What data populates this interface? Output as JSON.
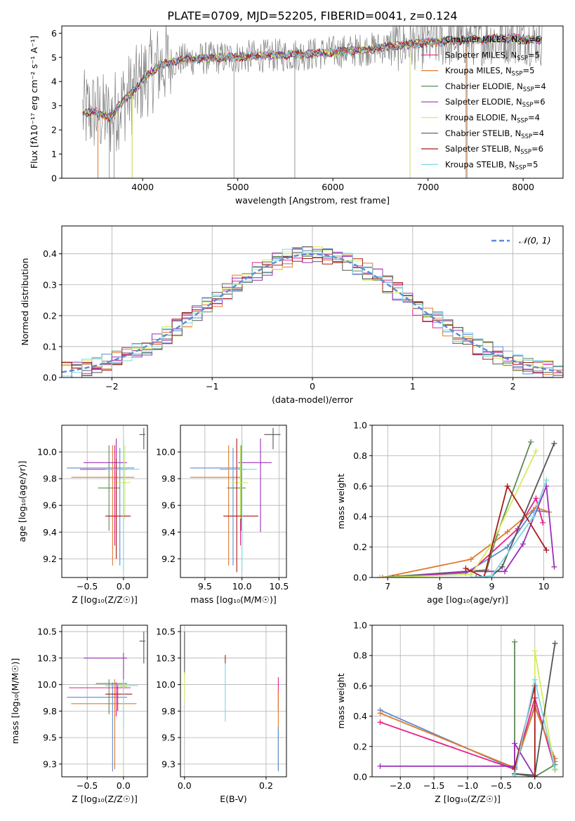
{
  "title": "PLATE=0709, MJD=52205, FIBERID=0041, z=0.124",
  "colors": {
    "cm": "#5b8bd6",
    "sm": "#e91e8a",
    "km": "#e07a2b",
    "ce": "#5f8a58",
    "se": "#9b30b8",
    "ke": "#d6ec5c",
    "cs": "#555555",
    "ss": "#a71a1a",
    "ks": "#7fd6e0",
    "obs": "#808080",
    "gauss": "#5b8bd6",
    "grid": "#b0b0b0"
  },
  "legend1": [
    {
      "name": "Chabrier MILES, N",
      "sub": "SSP",
      "tail": "=6",
      "c": "cm"
    },
    {
      "name": "Salpeter MILES, N",
      "sub": "SSP",
      "tail": "=5",
      "c": "sm"
    },
    {
      "name": "Kroupa MILES, N",
      "sub": "SSP",
      "tail": "=5",
      "c": "km"
    },
    {
      "name": "Chabrier ELODIE, N",
      "sub": "SSP",
      "tail": "=4",
      "c": "ce"
    },
    {
      "name": "Salpeter ELODIE, N",
      "sub": "SSP",
      "tail": "=6",
      "c": "se"
    },
    {
      "name": "Kroupa ELODIE, N",
      "sub": "SSP",
      "tail": "=4",
      "c": "ke"
    },
    {
      "name": "Chabrier STELIB, N",
      "sub": "SSP",
      "tail": "=4",
      "c": "cs"
    },
    {
      "name": "Salpeter STELIB, N",
      "sub": "SSP",
      "tail": "=6",
      "c": "ss"
    },
    {
      "name": "Kroupa STELIB, N",
      "sub": "SSP",
      "tail": "=5",
      "c": "ks"
    }
  ],
  "legend2": {
    "label": "𝒩(0, 1)"
  },
  "chart_data": [
    {
      "id": "spectrum",
      "type": "line",
      "xlabel": "wavelength [Angstrom, rest frame]",
      "ylabel": "Flux [fλ10⁻¹⁷ erg cm⁻² s⁻¹ A⁻¹]",
      "xlim": [
        3150,
        8420
      ],
      "ylim": [
        0,
        6.3
      ],
      "xticks": [
        4000,
        5000,
        6000,
        7000,
        8000
      ],
      "yticks": [
        0,
        1,
        2,
        3,
        4,
        5,
        6
      ],
      "continuum_x": [
        3350,
        3500,
        3650,
        3800,
        3950,
        4050,
        4200,
        4400,
        4600,
        4900,
        5200,
        5500,
        5800,
        6100,
        6400,
        6700,
        7000,
        7300,
        7600,
        7900,
        8200
      ],
      "continuum_y": [
        2.7,
        2.75,
        2.5,
        3.2,
        3.8,
        4.3,
        4.7,
        4.9,
        4.95,
        5.0,
        5.05,
        5.1,
        5.15,
        5.25,
        5.35,
        5.5,
        5.6,
        5.7,
        5.75,
        5.8,
        5.7
      ],
      "absorption_lines_x": [
        3530,
        3650,
        3700,
        3890,
        4960,
        5600,
        6810,
        7400
      ]
    },
    {
      "id": "residuals",
      "type": "histogram",
      "xlabel": "(data-model)/error",
      "ylabel": "Normed distribution",
      "xlim": [
        -2.5,
        2.5
      ],
      "ylim": [
        0,
        0.49
      ],
      "xticks": [
        -2,
        -1,
        0,
        1,
        2
      ],
      "yticks": [
        0.0,
        0.1,
        0.2,
        0.3,
        0.4
      ],
      "bin_width": 0.1,
      "reference": "normal(0,1)"
    },
    {
      "id": "age-vs-Z",
      "type": "scatter",
      "xlabel": "Z [log₁₀(Z/Z☉)]",
      "ylabel": "age  [log₁₀(age/yr)]",
      "xlim": [
        -0.85,
        0.33
      ],
      "ylim": [
        9.06,
        10.2
      ],
      "xticks": [
        -0.5,
        0.0
      ],
      "yticks": [
        9.2,
        9.4,
        9.6,
        9.8,
        10.0
      ],
      "points": [
        {
          "c": "cm",
          "x": -0.05,
          "xe": [
            -0.78,
            0.15
          ],
          "y": 9.88,
          "ye": [
            9.15,
            10.03
          ]
        },
        {
          "c": "sm",
          "x": -0.12,
          "xe": [
            -0.6,
            0.05
          ],
          "y": 9.87,
          "ye": [
            9.3,
            10.05
          ]
        },
        {
          "c": "km",
          "x": -0.15,
          "xe": [
            -0.72,
            0.15
          ],
          "y": 9.81,
          "ye": [
            9.15,
            10.05
          ]
        },
        {
          "c": "ce",
          "x": -0.2,
          "xe": [
            -0.35,
            -0.05
          ],
          "y": 9.73,
          "ye": [
            9.41,
            10.05
          ]
        },
        {
          "c": "se",
          "x": -0.1,
          "xe": [
            -0.55,
            0.05
          ],
          "y": 9.92,
          "ye": [
            9.4,
            10.1
          ]
        },
        {
          "c": "ke",
          "x": 0.02,
          "xe": [
            -0.1,
            0.1
          ],
          "y": 9.77,
          "ye": [
            9.5,
            10.05
          ]
        },
        {
          "c": "cs",
          "x": 0.28,
          "xe": [
            0.22,
            0.3
          ],
          "y": 10.13,
          "ye": [
            10.02,
            10.18
          ]
        },
        {
          "c": "ss",
          "x": -0.1,
          "xe": [
            -0.25,
            0.1
          ],
          "y": 9.52,
          "ye": [
            9.2,
            9.95
          ]
        },
        {
          "c": "ks",
          "x": 0.0,
          "xe": [
            -0.25,
            0.22
          ],
          "y": 9.87,
          "ye": [
            9.1,
            10.1
          ]
        }
      ]
    },
    {
      "id": "age-vs-mass",
      "type": "scatter",
      "xlabel": "mass [log₁₀(M/M☉)]",
      "ylabel": "",
      "xlim": [
        9.17,
        10.6
      ],
      "ylim": [
        9.06,
        10.2
      ],
      "xticks": [
        9.5,
        10.0,
        10.5
      ],
      "yticks": [
        9.2,
        9.4,
        9.6,
        9.8,
        10.0
      ],
      "points": [
        {
          "c": "cm",
          "x": 9.88,
          "xe": [
            9.3,
            9.98
          ],
          "y": 9.88,
          "ye": [
            9.15,
            10.03
          ]
        },
        {
          "c": "sm",
          "x": 9.98,
          "xe": [
            9.7,
            10.05
          ],
          "y": 9.87,
          "ye": [
            9.3,
            10.05
          ]
        },
        {
          "c": "km",
          "x": 9.82,
          "xe": [
            9.3,
            10.0
          ],
          "y": 9.81,
          "ye": [
            9.15,
            10.05
          ]
        },
        {
          "c": "ce",
          "x": 9.99,
          "xe": [
            9.8,
            10.05
          ],
          "y": 9.73,
          "ye": [
            9.41,
            10.05
          ]
        },
        {
          "c": "se",
          "x": 10.25,
          "xe": [
            9.95,
            10.4
          ],
          "y": 9.92,
          "ye": [
            9.4,
            10.1
          ]
        },
        {
          "c": "ke",
          "x": 9.98,
          "xe": [
            9.85,
            10.08
          ],
          "y": 9.77,
          "ye": [
            9.5,
            10.05
          ]
        },
        {
          "c": "cs",
          "x": 10.42,
          "xe": [
            10.3,
            10.52
          ],
          "y": 10.13,
          "ye": [
            10.02,
            10.18
          ]
        },
        {
          "c": "ss",
          "x": 9.93,
          "xe": [
            9.75,
            10.22
          ],
          "y": 9.52,
          "ye": [
            9.1,
            10.1
          ]
        },
        {
          "c": "ks",
          "x": 10.0,
          "xe": [
            9.7,
            10.2
          ],
          "y": 9.87,
          "ye": [
            9.1,
            10.1
          ]
        }
      ]
    },
    {
      "id": "weight-vs-age",
      "type": "line",
      "xlabel": "age  [log₁₀(age/yr)]",
      "ylabel": "mass weight",
      "xlim": [
        6.7,
        10.37
      ],
      "ylim": [
        0,
        1.0
      ],
      "xticks": [
        7,
        8,
        9,
        10
      ],
      "yticks": [
        0.0,
        0.2,
        0.4,
        0.6,
        0.8,
        1.0
      ],
      "series": [
        {
          "c": "cm",
          "x": [
            6.85,
            8.5,
            9.3,
            9.8,
            10.1
          ],
          "y": [
            0.0,
            0.03,
            0.2,
            0.44,
            0.43
          ]
        },
        {
          "c": "sm",
          "x": [
            7.2,
            8.6,
            9.5,
            9.85,
            9.98
          ],
          "y": [
            0.0,
            0.04,
            0.32,
            0.52,
            0.36
          ]
        },
        {
          "c": "km",
          "x": [
            6.9,
            8.6,
            9.3,
            9.85,
            10.1
          ],
          "y": [
            0.0,
            0.12,
            0.3,
            0.46,
            0.43
          ]
        },
        {
          "c": "ce",
          "x": [
            6.85,
            8.9,
            9.1,
            9.75
          ],
          "y": [
            0.0,
            0.05,
            0.28,
            0.89
          ]
        },
        {
          "c": "se",
          "x": [
            7.1,
            8.5,
            9.25,
            9.6,
            10.05,
            10.2
          ],
          "y": [
            0.0,
            0.04,
            0.04,
            0.22,
            0.6,
            0.07
          ]
        },
        {
          "c": "ke",
          "x": [
            6.85,
            8.6,
            9.0,
            9.85
          ],
          "y": [
            0.0,
            0.02,
            0.22,
            0.83
          ]
        },
        {
          "c": "cs",
          "x": [
            8.7,
            9.0,
            9.2,
            10.2
          ],
          "y": [
            0.0,
            0.01,
            0.07,
            0.88
          ]
        },
        {
          "c": "ss",
          "x": [
            8.5,
            8.85,
            9.3,
            10.05
          ],
          "y": [
            0.06,
            0.0,
            0.6,
            0.18
          ]
        },
        {
          "c": "ks",
          "x": [
            8.6,
            9.0,
            9.8,
            10.05
          ],
          "y": [
            0.0,
            0.01,
            0.4,
            0.64
          ]
        }
      ]
    },
    {
      "id": "mass-vs-Z",
      "type": "scatter",
      "xlabel": "Z [log₁₀(Z/Z☉)]",
      "ylabel": "mass [log₁₀(M/M☉)]",
      "xlim": [
        -0.85,
        0.33
      ],
      "ylim": [
        9.13,
        10.56
      ],
      "xticks": [
        -0.5,
        0.0
      ],
      "yticks": [
        9.25,
        9.5,
        9.75,
        10.0,
        10.25,
        10.5
      ],
      "points": [
        {
          "c": "cm",
          "x": -0.15,
          "xe": [
            -0.78,
            0.05
          ],
          "y": 9.88,
          "ye": [
            9.18,
            10.02
          ]
        },
        {
          "c": "sm",
          "x": -0.1,
          "xe": [
            -0.75,
            0.1
          ],
          "y": 9.97,
          "ye": [
            9.7,
            10.02
          ]
        },
        {
          "c": "km",
          "x": -0.12,
          "xe": [
            -0.72,
            0.18
          ],
          "y": 9.82,
          "ye": [
            9.2,
            10.05
          ]
        },
        {
          "c": "ce",
          "x": -0.2,
          "xe": [
            -0.38,
            0.05
          ],
          "y": 10.01,
          "ye": [
            9.72,
            10.05
          ]
        },
        {
          "c": "se",
          "x": 0.0,
          "xe": [
            -0.55,
            0.05
          ],
          "y": 10.25,
          "ye": [
            10.0,
            10.3
          ]
        },
        {
          "c": "ke",
          "x": 0.0,
          "xe": [
            -0.05,
            0.05
          ],
          "y": 9.98,
          "ye": [
            9.75,
            10.02
          ]
        },
        {
          "c": "cs",
          "x": 0.28,
          "xe": [
            0.22,
            0.3
          ],
          "y": 10.41,
          "ye": [
            10.2,
            10.5
          ]
        },
        {
          "c": "ss",
          "x": -0.08,
          "xe": [
            -0.25,
            0.12
          ],
          "y": 9.91,
          "ye": [
            9.75,
            10.0
          ]
        },
        {
          "c": "ks",
          "x": 0.0,
          "xe": [
            -0.25,
            0.2
          ],
          "y": 9.99,
          "ye": [
            9.6,
            10.05
          ]
        }
      ]
    },
    {
      "id": "mass-vs-EBV",
      "type": "scatter",
      "xlabel": "E(B-V)",
      "ylabel": "",
      "xlim": [
        -0.01,
        0.25
      ],
      "ylim": [
        9.13,
        10.56
      ],
      "xticks": [
        0.0,
        0.2
      ],
      "yticks": [
        9.25,
        9.5,
        9.75,
        10.0,
        10.25,
        10.5
      ],
      "points": [
        {
          "c": "cs",
          "x": 0.0,
          "y": 10.3,
          "ye": [
            10.1,
            10.5
          ]
        },
        {
          "c": "ke",
          "x": 0.0,
          "y": 9.98,
          "ye": [
            9.85,
            10.12
          ]
        },
        {
          "c": "ss",
          "x": 0.1,
          "y": 10.25,
          "ye": [
            10.2,
            10.28
          ]
        },
        {
          "c": "ks",
          "x": 0.1,
          "y": 9.95,
          "ye": [
            9.65,
            10.2
          ]
        },
        {
          "c": "sm",
          "x": 0.23,
          "y": 9.95,
          "ye": [
            9.75,
            10.07
          ]
        },
        {
          "c": "km",
          "x": 0.23,
          "y": 9.6,
          "ye": [
            9.2,
            9.93
          ]
        },
        {
          "c": "cm",
          "x": 0.23,
          "y": 9.4,
          "ye": [
            9.18,
            9.6
          ]
        }
      ]
    },
    {
      "id": "weight-vs-Z",
      "type": "line",
      "xlabel": "Z [log₁₀(Z/Z☉)]",
      "ylabel": "mass weight",
      "xlim": [
        -2.42,
        0.42
      ],
      "ylim": [
        0,
        1.0
      ],
      "xticks": [
        -2.0,
        -1.5,
        -1.0,
        -0.5,
        0.0
      ],
      "yticks": [
        0.0,
        0.2,
        0.4,
        0.6,
        0.8,
        1.0
      ],
      "series": [
        {
          "c": "cm",
          "x": [
            -2.3,
            -0.3,
            0.0,
            0.3
          ],
          "y": [
            0.44,
            0.05,
            0.47,
            0.1
          ]
        },
        {
          "c": "sm",
          "x": [
            -2.3,
            -0.3,
            0.0,
            0.3
          ],
          "y": [
            0.36,
            0.05,
            0.52,
            0.05
          ]
        },
        {
          "c": "km",
          "x": [
            -2.3,
            -0.3,
            0.0,
            0.3
          ],
          "y": [
            0.42,
            0.06,
            0.46,
            0.12
          ]
        },
        {
          "c": "ce",
          "x": [
            -0.3,
            -0.3,
            0.0,
            0.3
          ],
          "y": [
            0.89,
            0.02,
            0.0,
            0.08
          ]
        },
        {
          "c": "se",
          "x": [
            -2.3,
            -0.3,
            -0.3,
            0.0
          ],
          "y": [
            0.07,
            0.07,
            0.22,
            0.0
          ]
        },
        {
          "c": "ke",
          "x": [
            0.0,
            0.0,
            0.3
          ],
          "y": [
            0.01,
            0.83,
            0.04
          ]
        },
        {
          "c": "cs",
          "x": [
            -0.3,
            0.0,
            0.3
          ],
          "y": [
            0.02,
            0.01,
            0.88
          ]
        },
        {
          "c": "ss",
          "x": [
            -0.3,
            0.0,
            0.0
          ],
          "y": [
            0.06,
            0.6,
            0.0
          ]
        },
        {
          "c": "ks",
          "x": [
            -0.3,
            0.0,
            0.3
          ],
          "y": [
            0.01,
            0.64,
            0.05
          ]
        }
      ]
    }
  ]
}
